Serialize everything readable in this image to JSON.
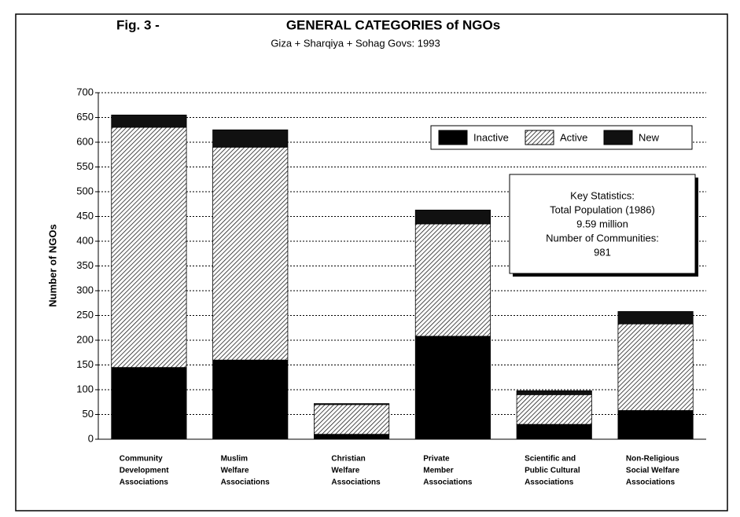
{
  "chart_data": {
    "type": "stacked_bar",
    "figure_label": "Fig. 3 -",
    "title": "GENERAL CATEGORIES of NGOs",
    "subtitle": "Giza + Sharqiya + Sohag Govs:  1993",
    "y_label": "Number of NGOs",
    "categories": [
      [
        "Community",
        "Development",
        "Associations"
      ],
      [
        "Muslim",
        "Welfare",
        "Associations"
      ],
      [
        "Christian",
        "Welfare",
        "Associations"
      ],
      [
        "Private",
        "Member",
        "Associations"
      ],
      [
        "Scientific  and",
        "Public Cultural",
        "Associations"
      ],
      [
        "Non-Religious",
        "Social Welfare",
        "Associations"
      ]
    ],
    "series": [
      {
        "name": "Inactive",
        "color": "#000000",
        "values": [
          145,
          160,
          10,
          208,
          30,
          58
        ]
      },
      {
        "name": "Active",
        "color": "#ffffff",
        "pattern": "hatch",
        "values": [
          485,
          430,
          60,
          227,
          60,
          175
        ]
      },
      {
        "name": "New",
        "color": "#111111",
        "values": [
          25,
          35,
          2,
          28,
          8,
          25
        ]
      }
    ],
    "ylim": [
      0,
      700
    ],
    "yticks": [
      0,
      50,
      100,
      150,
      200,
      250,
      300,
      350,
      400,
      450,
      500,
      550,
      600,
      650,
      700
    ],
    "grid": true,
    "annotation": [
      "Key Statistics:",
      "Total Population (1986)",
      "9.59 million",
      "Number of Communities:",
      "981"
    ]
  }
}
